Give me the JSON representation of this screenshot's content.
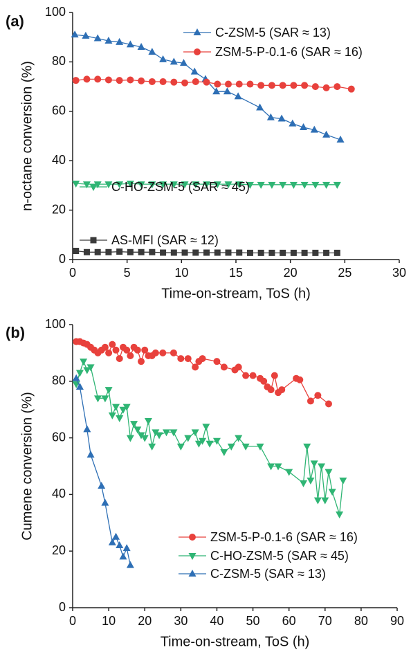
{
  "chart_data": [
    {
      "type": "line",
      "label": "(a)",
      "x_label": "Time-on-stream, ToS (h)",
      "y_label": "n-octane conversion (%)",
      "xlim": [
        0,
        30
      ],
      "xticks": [
        0,
        5,
        10,
        15,
        20,
        25,
        30
      ],
      "ylim": [
        0,
        100
      ],
      "yticks": [
        0,
        20,
        40,
        60,
        80,
        100
      ],
      "series": [
        {
          "name": "C-ZSM-5 (SAR ≈ 13)",
          "color": "#2e6fb5",
          "marker": "triangle-up",
          "x": [
            0.2,
            1.2,
            2.3,
            3.3,
            4.3,
            5.3,
            6.3,
            7.3,
            8.3,
            9.3,
            10.2,
            11.2,
            12.2,
            13.2,
            14.2,
            15.2,
            17.2,
            18.2,
            19.2,
            20.2,
            21.2,
            22.2,
            23.3,
            24.6
          ],
          "values": [
            91,
            90.5,
            89.5,
            88.5,
            88,
            87,
            86,
            84,
            81,
            80,
            79.5,
            76,
            73,
            68,
            68,
            66,
            61.5,
            57.5,
            57,
            55,
            53.5,
            52.5,
            50.5,
            48.5
          ]
        },
        {
          "name": "ZSM-5-P-0.1-6 (SAR ≈ 16)",
          "color": "#e8413c",
          "marker": "circle",
          "x": [
            0.3,
            1.3,
            2.3,
            3.3,
            4.3,
            5.3,
            6.3,
            7.3,
            8.3,
            9.3,
            10.3,
            11.3,
            12.3,
            13.3,
            14.3,
            15.3,
            16.3,
            17.3,
            18.3,
            19.3,
            20.3,
            21.3,
            22.3,
            23.3,
            24.3,
            25.6
          ],
          "values": [
            72.5,
            73,
            73,
            72.7,
            72.5,
            72.7,
            72.3,
            72,
            72,
            71.8,
            71.5,
            72,
            71.8,
            71,
            71,
            71,
            71,
            70.5,
            70.5,
            70.5,
            70.5,
            70.5,
            70,
            69.5,
            70,
            69
          ]
        },
        {
          "name": "C-HO-ZSM-5 (SAR ≈ 45)",
          "color": "#2fb574",
          "marker": "triangle-down",
          "x": [
            0.3,
            1.3,
            2.3,
            3.3,
            4.3,
            5.3,
            6.3,
            7.3,
            8.3,
            9.3,
            10.3,
            11.3,
            12.3,
            13.3,
            14.3,
            15.3,
            16.3,
            17.3,
            18.3,
            19.3,
            20.3,
            21.3,
            22.3,
            23.3,
            24.3
          ],
          "values": [
            30.8,
            30.5,
            30.5,
            30.5,
            30.5,
            30.8,
            30.5,
            30.5,
            30.5,
            30.5,
            30.5,
            30.5,
            30.5,
            30.5,
            30.5,
            30.5,
            30.3,
            30.3,
            30.3,
            30.3,
            30.3,
            30.3,
            30.3,
            30.3,
            30.3
          ]
        },
        {
          "name": "AS-MFI (SAR ≈ 12)",
          "color": "#3a3a3a",
          "marker": "square",
          "x": [
            0.3,
            1.3,
            2.3,
            3.3,
            4.3,
            5.3,
            6.3,
            7.3,
            8.3,
            9.3,
            10.3,
            11.3,
            12.3,
            13.3,
            14.3,
            15.3,
            16.3,
            17.3,
            18.3,
            19.3,
            20.3,
            21.3,
            22.3,
            23.3,
            24.3
          ],
          "values": [
            3.5,
            3,
            3,
            3,
            3.2,
            3,
            3,
            3,
            2.8,
            2.8,
            2.8,
            2.8,
            2.8,
            2.8,
            2.8,
            2.8,
            2.7,
            2.7,
            2.7,
            2.7,
            2.7,
            2.7,
            2.7,
            2.7,
            2.7
          ]
        }
      ]
    },
    {
      "type": "line",
      "label": "(b)",
      "x_label": "Time-on-stream, ToS (h)",
      "y_label": "Cumene conversion (%)",
      "xlim": [
        0,
        90
      ],
      "xticks": [
        0,
        10,
        20,
        30,
        40,
        50,
        60,
        70,
        80,
        90
      ],
      "ylim": [
        0,
        100
      ],
      "yticks": [
        0,
        20,
        40,
        60,
        80,
        100
      ],
      "series": [
        {
          "name": "ZSM-5-P-0.1-6 (SAR ≈ 16)",
          "color": "#e8413c",
          "marker": "circle",
          "x": [
            1,
            2,
            3,
            4,
            5,
            6,
            7,
            8,
            9,
            10,
            11,
            12,
            13,
            14,
            15,
            16,
            17,
            18,
            19,
            20,
            21,
            22,
            23,
            25,
            28,
            30,
            32,
            34,
            35,
            36,
            40,
            42,
            45,
            46,
            48,
            50,
            52,
            53,
            54,
            55,
            56,
            57,
            58,
            62,
            63,
            66,
            68,
            71
          ],
          "values": [
            94,
            94,
            93.5,
            93,
            92,
            91,
            90,
            91,
            92,
            90,
            93,
            91,
            88,
            92,
            91,
            89,
            92,
            91,
            87,
            91,
            89,
            89,
            90,
            90,
            90,
            88,
            88,
            85,
            87,
            88,
            87,
            85,
            84,
            85,
            82,
            82,
            81,
            80,
            78,
            77,
            82,
            76,
            77,
            81,
            80.5,
            73,
            75,
            72
          ]
        },
        {
          "name": "C-HO-ZSM-5 (SAR ≈ 45)",
          "color": "#2fb574",
          "marker": "triangle-down",
          "x": [
            1,
            2,
            3,
            4,
            5,
            7,
            9,
            10,
            11,
            12,
            13,
            14,
            15,
            16,
            17,
            18,
            19,
            20,
            21,
            22,
            23,
            24,
            26,
            28,
            30,
            32,
            34,
            35,
            36,
            37,
            38,
            40,
            42,
            44,
            46,
            48,
            52,
            55,
            57,
            60,
            64,
            65,
            66,
            67,
            68,
            69,
            70,
            71,
            72,
            74,
            75
          ],
          "values": [
            79,
            83,
            87,
            84,
            85,
            74,
            74,
            77,
            68,
            71,
            67,
            70,
            71,
            60,
            65,
            63,
            61,
            60,
            66,
            57,
            62,
            61,
            62,
            62,
            57,
            60,
            62,
            58,
            59,
            64,
            58,
            59,
            55,
            57,
            60,
            57,
            57,
            50,
            50,
            48,
            44,
            57,
            45,
            51,
            38,
            50,
            38,
            48,
            41,
            33,
            45
          ]
        },
        {
          "name": "C-ZSM-5 (SAR ≈ 13)",
          "color": "#2e6fb5",
          "marker": "triangle-up",
          "x": [
            1,
            2,
            4,
            5,
            8,
            9,
            11,
            12,
            13,
            14,
            15,
            16
          ],
          "values": [
            81,
            78,
            63,
            54,
            43,
            37,
            23,
            25,
            22,
            18,
            21,
            15
          ]
        }
      ]
    }
  ]
}
